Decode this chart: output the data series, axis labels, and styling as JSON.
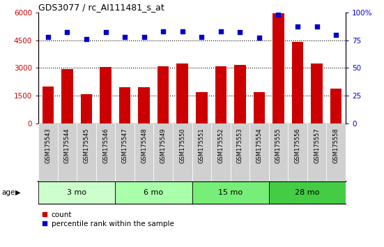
{
  "title": "GDS3077 / rc_AI111481_s_at",
  "samples": [
    "GSM175543",
    "GSM175544",
    "GSM175545",
    "GSM175546",
    "GSM175547",
    "GSM175548",
    "GSM175549",
    "GSM175550",
    "GSM175551",
    "GSM175552",
    "GSM175553",
    "GSM175554",
    "GSM175555",
    "GSM175556",
    "GSM175557",
    "GSM175558"
  ],
  "bar_values": [
    2000,
    2950,
    1600,
    3050,
    1950,
    1950,
    3100,
    3250,
    1700,
    3100,
    3150,
    1700,
    5950,
    4400,
    3250,
    1900
  ],
  "dot_values_pct": [
    78,
    82,
    76,
    82,
    78,
    78,
    83,
    83,
    78,
    83,
    82,
    77,
    98,
    87,
    87,
    80
  ],
  "bar_color": "#cc0000",
  "dot_color": "#0000cc",
  "ylim_left": [
    0,
    6000
  ],
  "ylim_right": [
    0,
    100
  ],
  "yticks_left": [
    0,
    1500,
    3000,
    4500,
    6000
  ],
  "ytick_labels_left": [
    "0",
    "1500",
    "3000",
    "4500",
    "6000"
  ],
  "yticks_right": [
    0,
    25,
    50,
    75,
    100
  ],
  "ytick_labels_right": [
    "0",
    "25",
    "50",
    "75",
    "100%"
  ],
  "groups": [
    {
      "label": "3 mo",
      "start": 0,
      "end": 3
    },
    {
      "label": "6 mo",
      "start": 4,
      "end": 7
    },
    {
      "label": "15 mo",
      "start": 8,
      "end": 11
    },
    {
      "label": "28 mo",
      "start": 12,
      "end": 15
    }
  ],
  "group_colors": [
    "#ccffcc",
    "#aaffaa",
    "#77ee77",
    "#44cc44"
  ],
  "age_label": "age",
  "legend_count_label": "count",
  "legend_pct_label": "percentile rank within the sample",
  "tick_label_bg": "#d0d0d0",
  "grid_yvals": [
    1500,
    3000,
    4500
  ]
}
